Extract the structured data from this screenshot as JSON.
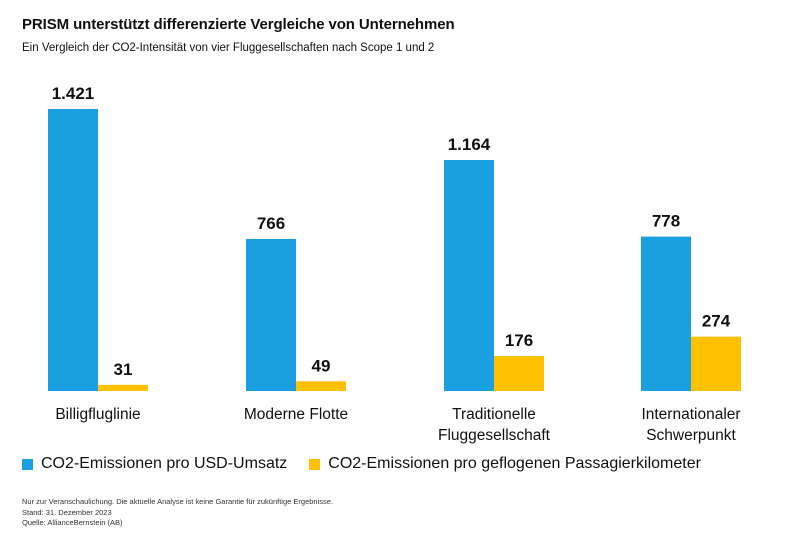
{
  "header": {
    "title": "PRISM unterstützt differenzierte Vergleiche von Unternehmen",
    "subtitle": "Ein Vergleich der CO2-Intensität von vier Fluggesellschaften nach Scope 1 und 2"
  },
  "chart_data": {
    "type": "bar",
    "title": "PRISM unterstützt differenzierte Vergleiche von Unternehmen",
    "subtitle": "Ein Vergleich der CO2-Intensität von vier Fluggesellschaften nach Scope 1 und 2",
    "categories": [
      [
        "Billigfluglinie"
      ],
      [
        "Moderne Flotte"
      ],
      [
        "Traditionelle",
        "Fluggesellschaft"
      ],
      [
        "Internationaler",
        "Schwerpunkt"
      ]
    ],
    "series": [
      {
        "name": "CO2-Emissionen pro USD-Umsatz",
        "color": "#1a9fe0",
        "values": [
          1421,
          766,
          1164,
          778
        ],
        "labels": [
          "1.421",
          "766",
          "1.164",
          "778"
        ]
      },
      {
        "name": "CO2-Emissionen pro geflogenen Passagierkilometer",
        "color": "#ffc000",
        "values": [
          31,
          49,
          176,
          274
        ],
        "labels": [
          "31",
          "49",
          "176",
          "274"
        ]
      }
    ],
    "xlabel": "",
    "ylabel": "",
    "ylim": [
      0,
      1421
    ],
    "grid": false,
    "legend": "bottom-left"
  },
  "footer": {
    "lines": [
      "Nur zur Veranschaulichung. Die aktuelle Analyse ist keine Garantie für zukünftige Ergebnisse.",
      "Stand: 31. Dezember 2023",
      "Quelle: AllianceBernstein (AB)"
    ]
  }
}
